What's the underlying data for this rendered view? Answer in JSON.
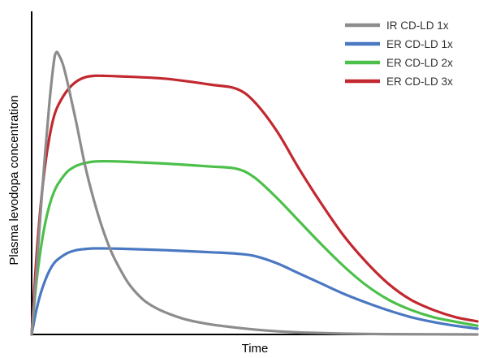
{
  "chart_data": {
    "type": "line",
    "title": "",
    "xlabel": "Time",
    "ylabel": "Plasma levodopa concentration",
    "xlim": [
      0,
      100
    ],
    "ylim": [
      0,
      100
    ],
    "grid": false,
    "legend_position": "top-right",
    "series": [
      {
        "name": "IR CD-LD 1x",
        "color": "#8c8c8c",
        "x": [
          0,
          1,
          2,
          3,
          4,
          5,
          5.5,
          6,
          7,
          8,
          9,
          10,
          12,
          14,
          16,
          18,
          20,
          22,
          25,
          28,
          31,
          35,
          40,
          45,
          50,
          55,
          60,
          65,
          70,
          80,
          90,
          100
        ],
        "y": [
          0,
          20,
          42,
          62,
          80,
          94,
          97,
          96.5,
          93,
          87,
          80,
          73,
          58,
          46,
          36,
          28,
          22,
          17,
          12,
          9,
          7,
          5,
          3.5,
          2.5,
          1.7,
          1.1,
          0.7,
          0.5,
          0.3,
          0.1,
          0.05,
          0
        ]
      },
      {
        "name": "ER CD-LD 1x",
        "color": "#4a78c2",
        "x": [
          0,
          1,
          2,
          3,
          4,
          5,
          6,
          8,
          10,
          12,
          14,
          16,
          20,
          30,
          40,
          46,
          50,
          55,
          60,
          65,
          70,
          75,
          80,
          85,
          90,
          95,
          100
        ],
        "y": [
          0,
          8,
          14,
          18.5,
          22,
          24.5,
          26,
          28,
          29,
          29.4,
          29.6,
          29.6,
          29.5,
          29,
          28.3,
          27.8,
          27,
          24.5,
          21,
          17.5,
          14,
          11,
          8.3,
          6,
          4.3,
          3,
          2
        ]
      },
      {
        "name": "ER CD-LD 2x",
        "color": "#4cc04a",
        "x": [
          0,
          1,
          2,
          3,
          4,
          5,
          6,
          8,
          10,
          12,
          14,
          16,
          20,
          30,
          40,
          46,
          50,
          55,
          60,
          65,
          70,
          75,
          80,
          85,
          90,
          95,
          100
        ],
        "y": [
          0,
          17,
          29,
          38,
          44.5,
          49,
          52,
          56,
          58,
          59,
          59.5,
          59.6,
          59.5,
          58.8,
          57.8,
          57,
          54,
          47,
          39,
          31,
          23.5,
          17,
          12,
          8.5,
          6,
          4.4,
          3
        ]
      },
      {
        "name": "ER CD-LD 3x",
        "color": "#c2282f",
        "x": [
          0,
          1,
          2,
          3,
          4,
          5,
          6,
          8,
          10,
          12,
          14,
          16,
          20,
          30,
          40,
          46,
          50,
          55,
          60,
          65,
          70,
          75,
          80,
          85,
          90,
          95,
          100
        ],
        "y": [
          0,
          25,
          44,
          58,
          68,
          75,
          79,
          84,
          87,
          88.5,
          89,
          89,
          88.8,
          88,
          86,
          84.5,
          80,
          70,
          57,
          45,
          34,
          25,
          17.5,
          12,
          8.5,
          6,
          4.5
        ]
      }
    ]
  }
}
